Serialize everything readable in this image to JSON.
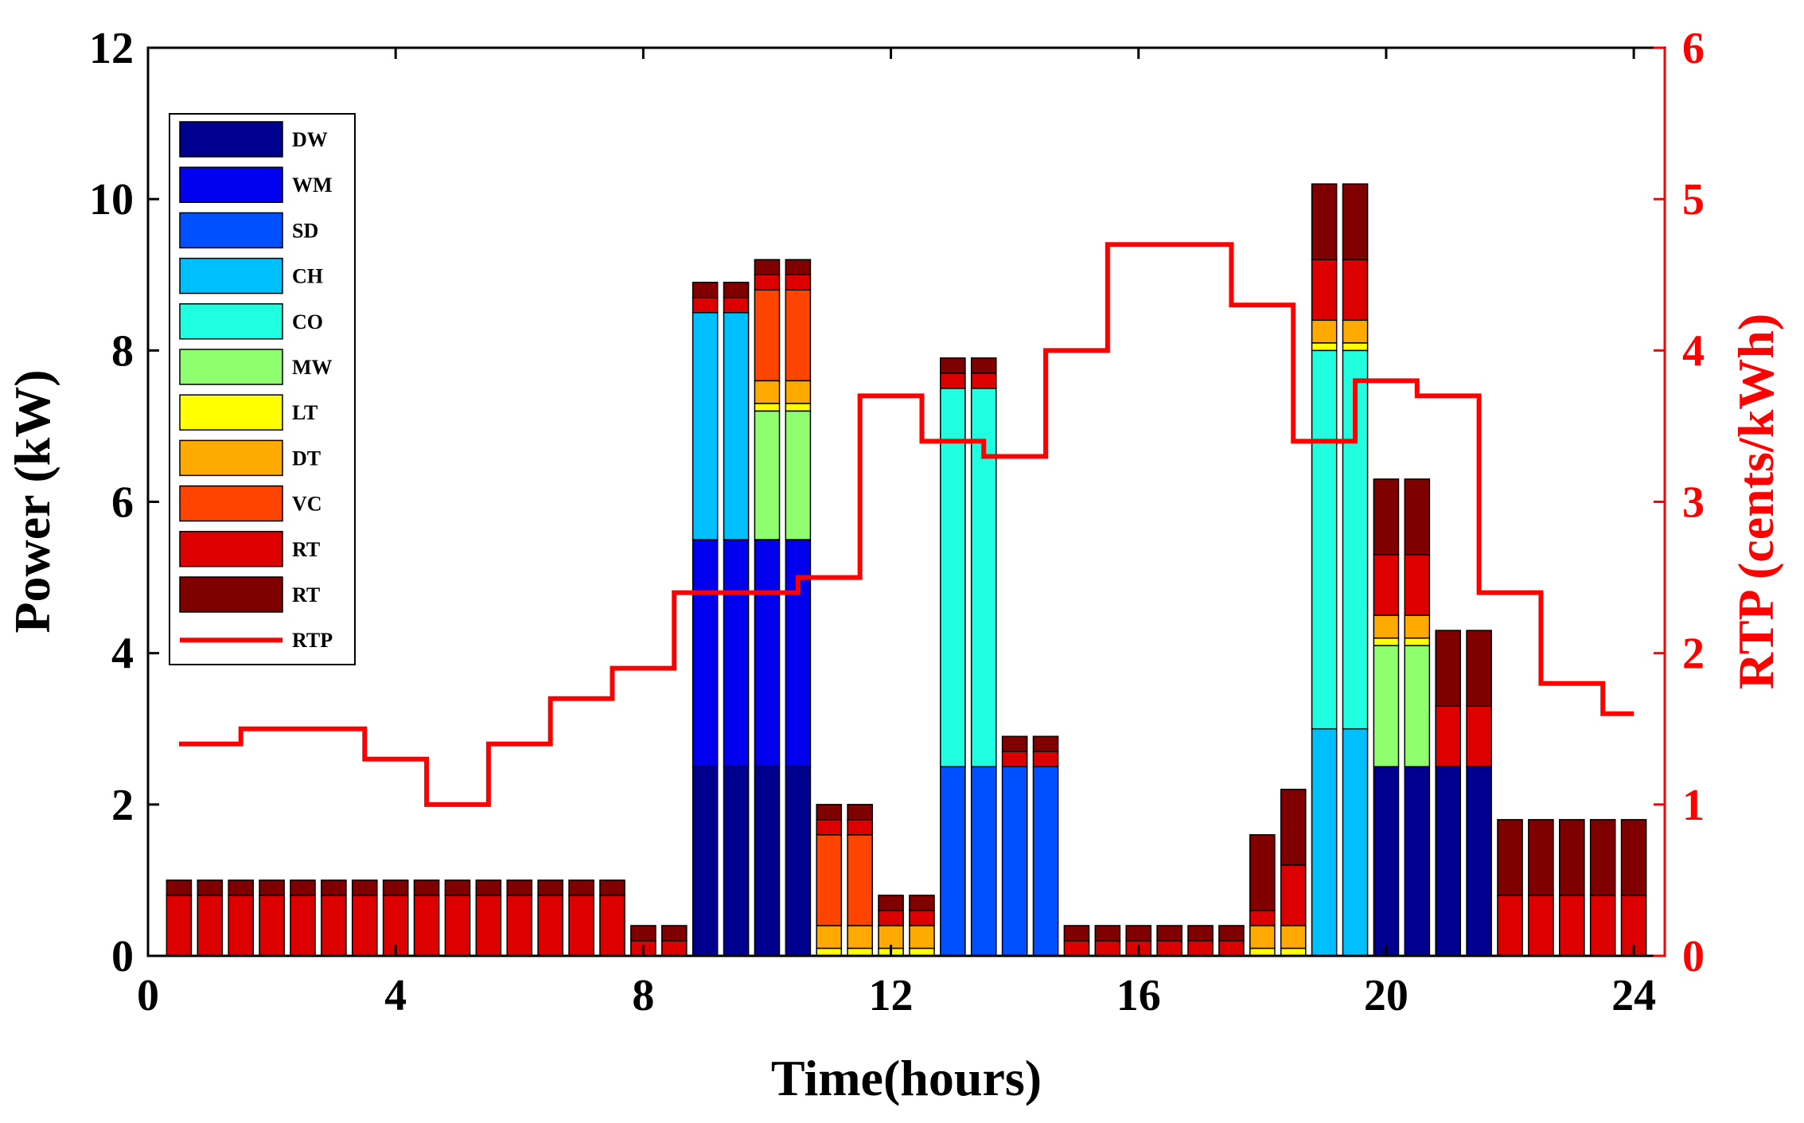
{
  "chart_data": {
    "type": "bar",
    "subtype": "stacked-bar-with-step-line",
    "xlabel": "Time(hours)",
    "ylabel": "Power (kW)",
    "y2label": "RTP (cents/kWh)",
    "xlim": [
      0,
      24.5
    ],
    "ylim": [
      0,
      12
    ],
    "y2lim": [
      0,
      6
    ],
    "x_ticks": [
      "0",
      "4",
      "8",
      "12",
      "16",
      "20",
      "24"
    ],
    "y_ticks": [
      "0",
      "2",
      "4",
      "6",
      "8",
      "10",
      "12"
    ],
    "y2_ticks": [
      "0",
      "1",
      "2",
      "3",
      "4",
      "5",
      "6"
    ],
    "legend_position": "top-left",
    "bar_width": 0.4,
    "times": [
      0.5,
      1,
      1.5,
      2,
      2.5,
      3,
      3.5,
      4,
      4.5,
      5,
      5.5,
      6,
      6.5,
      7,
      7.5,
      8,
      8.5,
      9,
      9.5,
      10,
      10.5,
      11,
      11.5,
      12,
      12.5,
      13,
      13.5,
      14,
      14.5,
      15,
      15.5,
      16,
      16.5,
      17,
      17.5,
      18,
      18.5,
      19,
      19.5,
      20,
      20.5,
      21,
      21.5,
      22,
      22.5,
      23,
      23.5,
      24
    ],
    "series": [
      {
        "name": "DW",
        "color": "#00008f",
        "values": [
          0,
          0,
          0,
          0,
          0,
          0,
          0,
          0,
          0,
          0,
          0,
          0,
          0,
          0,
          0,
          0,
          0,
          2.5,
          2.5,
          2.5,
          2.5,
          0,
          0,
          0,
          0,
          0,
          0,
          0,
          0,
          0,
          0,
          0,
          0,
          0,
          0,
          0,
          0,
          0,
          0,
          2.5,
          2.5,
          2.5,
          2.5,
          0,
          0,
          0,
          0,
          0
        ]
      },
      {
        "name": "WM",
        "color": "#0000ee",
        "values": [
          0,
          0,
          0,
          0,
          0,
          0,
          0,
          0,
          0,
          0,
          0,
          0,
          0,
          0,
          0,
          0,
          0,
          3,
          3,
          3,
          3,
          0,
          0,
          0,
          0,
          0,
          0,
          0,
          0,
          0,
          0,
          0,
          0,
          0,
          0,
          0,
          0,
          0,
          0,
          0,
          0,
          0,
          0,
          0,
          0,
          0,
          0,
          0
        ]
      },
      {
        "name": "SD",
        "color": "#0050ff",
        "values": [
          0,
          0,
          0,
          0,
          0,
          0,
          0,
          0,
          0,
          0,
          0,
          0,
          0,
          0,
          0,
          0,
          0,
          0,
          0,
          0,
          0,
          0,
          0,
          0,
          0,
          2.5,
          2.5,
          2.5,
          2.5,
          0,
          0,
          0,
          0,
          0,
          0,
          0,
          0,
          0,
          0,
          0,
          0,
          0,
          0,
          0,
          0,
          0,
          0,
          0
        ]
      },
      {
        "name": "CH",
        "color": "#00bfff",
        "values": [
          0,
          0,
          0,
          0,
          0,
          0,
          0,
          0,
          0,
          0,
          0,
          0,
          0,
          0,
          0,
          0,
          0,
          3,
          3,
          0,
          0,
          0,
          0,
          0,
          0,
          0,
          0,
          0,
          0,
          0,
          0,
          0,
          0,
          0,
          0,
          0,
          0,
          3,
          3,
          0,
          0,
          0,
          0,
          0,
          0,
          0,
          0,
          0
        ]
      },
      {
        "name": "CO",
        "color": "#20ffdf",
        "values": [
          0,
          0,
          0,
          0,
          0,
          0,
          0,
          0,
          0,
          0,
          0,
          0,
          0,
          0,
          0,
          0,
          0,
          0,
          0,
          0,
          0,
          0,
          0,
          0,
          0,
          5,
          5,
          0,
          0,
          0,
          0,
          0,
          0,
          0,
          0,
          0,
          0,
          5,
          5,
          0,
          0,
          0,
          0,
          0,
          0,
          0,
          0,
          0
        ]
      },
      {
        "name": "MW",
        "color": "#8fff70",
        "values": [
          0,
          0,
          0,
          0,
          0,
          0,
          0,
          0,
          0,
          0,
          0,
          0,
          0,
          0,
          0,
          0,
          0,
          0,
          0,
          1.7,
          1.7,
          0,
          0,
          0,
          0,
          0,
          0,
          0,
          0,
          0,
          0,
          0,
          0,
          0,
          0,
          0,
          0,
          0,
          0,
          1.6,
          1.6,
          0,
          0,
          0,
          0,
          0,
          0,
          0
        ]
      },
      {
        "name": "LT",
        "color": "#ffff00",
        "values": [
          0,
          0,
          0,
          0,
          0,
          0,
          0,
          0,
          0,
          0,
          0,
          0,
          0,
          0,
          0,
          0,
          0,
          0,
          0,
          0.1,
          0.1,
          0.1,
          0.1,
          0.1,
          0.1,
          0,
          0,
          0,
          0,
          0,
          0,
          0,
          0,
          0,
          0,
          0.1,
          0.1,
          0.1,
          0.1,
          0.1,
          0.1,
          0,
          0,
          0,
          0,
          0,
          0,
          0
        ]
      },
      {
        "name": "DT",
        "color": "#ffaa00",
        "values": [
          0,
          0,
          0,
          0,
          0,
          0,
          0,
          0,
          0,
          0,
          0,
          0,
          0,
          0,
          0,
          0,
          0,
          0,
          0,
          0.3,
          0.3,
          0.3,
          0.3,
          0.3,
          0.3,
          0,
          0,
          0,
          0,
          0,
          0,
          0,
          0,
          0,
          0,
          0.3,
          0.3,
          0.3,
          0.3,
          0.3,
          0.3,
          0,
          0,
          0,
          0,
          0,
          0,
          0
        ]
      },
      {
        "name": "VC",
        "color": "#ff4400",
        "values": [
          0,
          0,
          0,
          0,
          0,
          0,
          0,
          0,
          0,
          0,
          0,
          0,
          0,
          0,
          0,
          0,
          0,
          0,
          0,
          1.2,
          1.2,
          1.2,
          1.2,
          0,
          0,
          0,
          0,
          0,
          0,
          0,
          0,
          0,
          0,
          0,
          0,
          0,
          0,
          0,
          0,
          0,
          0,
          0,
          0,
          0,
          0,
          0,
          0,
          0
        ]
      },
      {
        "name": "RT",
        "color": "#dd0000",
        "values": [
          0.8,
          0.8,
          0.8,
          0.8,
          0.8,
          0.8,
          0.8,
          0.8,
          0.8,
          0.8,
          0.8,
          0.8,
          0.8,
          0.8,
          0.8,
          0.2,
          0.2,
          0.2,
          0.2,
          0.2,
          0.2,
          0.2,
          0.2,
          0.2,
          0.2,
          0.2,
          0.2,
          0.2,
          0.2,
          0.2,
          0.2,
          0.2,
          0.2,
          0.2,
          0.2,
          0.2,
          0.8,
          0.8,
          0.8,
          0.8,
          0.8,
          0.8,
          0.8,
          0.8,
          0.8,
          0.8,
          0.8,
          0.8
        ]
      },
      {
        "name": "RT",
        "color": "#800000",
        "values": [
          0.2,
          0.2,
          0.2,
          0.2,
          0.2,
          0.2,
          0.2,
          0.2,
          0.2,
          0.2,
          0.2,
          0.2,
          0.2,
          0.2,
          0.2,
          0.2,
          0.2,
          0.2,
          0.2,
          0.2,
          0.2,
          0.2,
          0.2,
          0.2,
          0.2,
          0.2,
          0.2,
          0.2,
          0.2,
          0.2,
          0.2,
          0.2,
          0.2,
          0.2,
          0.2,
          1,
          1,
          1,
          1,
          1,
          1,
          1,
          1,
          1,
          1,
          1,
          1,
          1
        ]
      }
    ],
    "rtp": {
      "name": "RTP",
      "color": "#ff0000",
      "axis": "right",
      "steps": [
        {
          "from": 0.5,
          "to": 1.5,
          "value": 1.4
        },
        {
          "from": 1.5,
          "to": 3.5,
          "value": 1.5
        },
        {
          "from": 3.5,
          "to": 4.5,
          "value": 1.3
        },
        {
          "from": 4.5,
          "to": 5.5,
          "value": 1.0
        },
        {
          "from": 5.5,
          "to": 6.5,
          "value": 1.4
        },
        {
          "from": 6.5,
          "to": 7.5,
          "value": 1.7
        },
        {
          "from": 7.5,
          "to": 8.5,
          "value": 1.9
        },
        {
          "from": 8.5,
          "to": 10.5,
          "value": 2.4
        },
        {
          "from": 10.5,
          "to": 11.5,
          "value": 2.5
        },
        {
          "from": 11.5,
          "to": 12.5,
          "value": 3.7
        },
        {
          "from": 12.5,
          "to": 13.5,
          "value": 3.4
        },
        {
          "from": 13.5,
          "to": 14.5,
          "value": 3.3
        },
        {
          "from": 14.5,
          "to": 15.5,
          "value": 4.0
        },
        {
          "from": 15.5,
          "to": 17.5,
          "value": 4.7
        },
        {
          "from": 17.5,
          "to": 18.5,
          "value": 4.3
        },
        {
          "from": 18.5,
          "to": 19.5,
          "value": 3.4
        },
        {
          "from": 19.5,
          "to": 20.5,
          "value": 3.8
        },
        {
          "from": 20.5,
          "to": 21.5,
          "value": 3.7
        },
        {
          "from": 21.5,
          "to": 22.5,
          "value": 2.4
        },
        {
          "from": 22.5,
          "to": 23.5,
          "value": 1.8
        },
        {
          "from": 23.5,
          "to": 24,
          "value": 1.6
        }
      ]
    }
  }
}
